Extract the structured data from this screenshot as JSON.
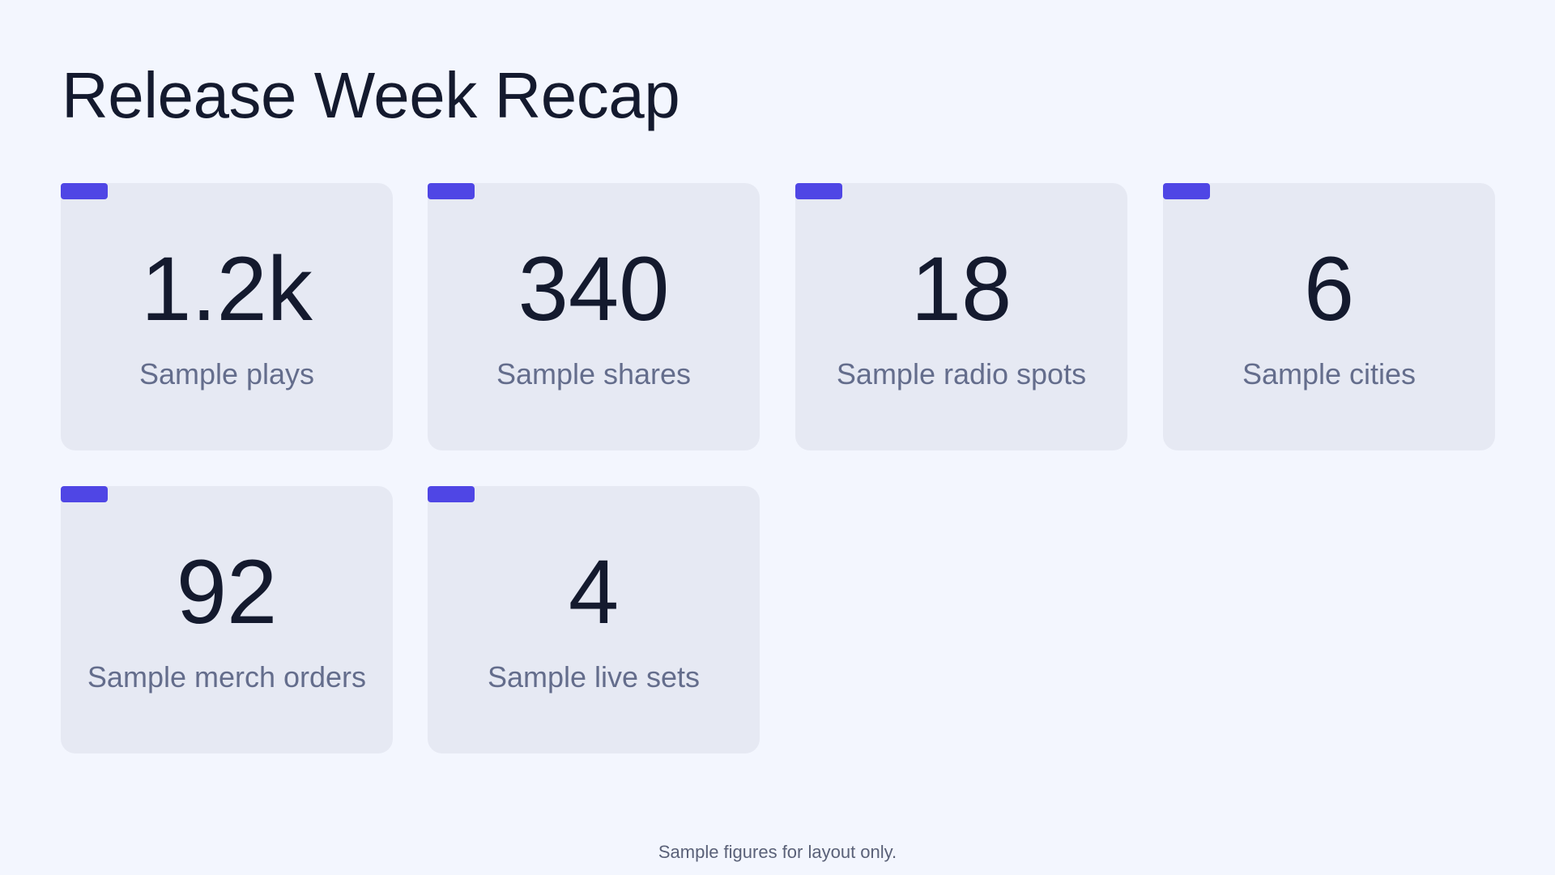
{
  "title": "Release Week Recap",
  "accent_color": "#4f46e5",
  "stats": [
    {
      "value": "1.2k",
      "label": "Sample plays"
    },
    {
      "value": "340",
      "label": "Sample shares"
    },
    {
      "value": "18",
      "label": "Sample radio spots"
    },
    {
      "value": "6",
      "label": "Sample cities"
    },
    {
      "value": "92",
      "label": "Sample merch orders"
    },
    {
      "value": "4",
      "label": "Sample live sets"
    }
  ],
  "footnote": "Sample figures for layout only."
}
